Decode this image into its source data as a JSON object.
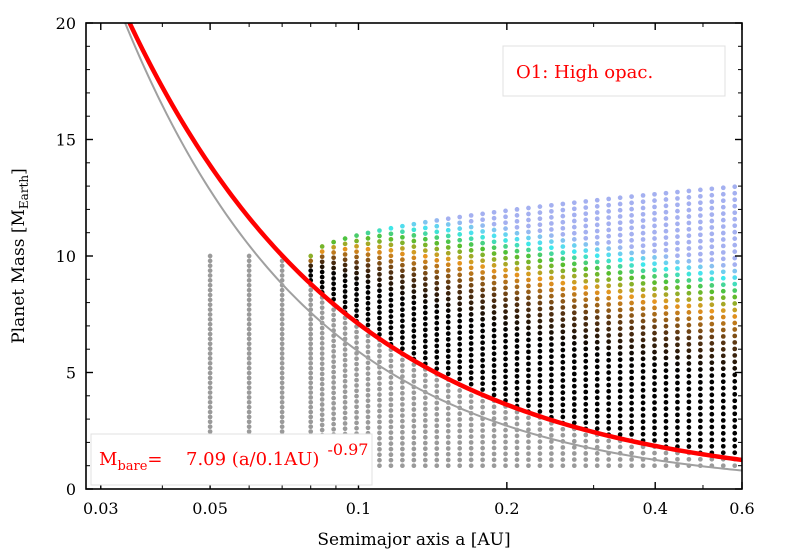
{
  "chart_data": {
    "type": "scatter",
    "xlabel": "Semimajor axis a [AU]",
    "ylabel": {
      "main": "Planet Mass [M",
      "sub": "Earth",
      "tail": "]"
    },
    "x_scale": "log",
    "xlim": [
      0.028,
      0.6
    ],
    "ylim": [
      0,
      20
    ],
    "xticks": [
      {
        "value": 0.03,
        "label": "0.03"
      },
      {
        "value": 0.05,
        "label": "0.05"
      },
      {
        "value": 0.1,
        "label": "0.1"
      },
      {
        "value": 0.2,
        "label": "0.2"
      },
      {
        "value": 0.4,
        "label": "0.4"
      },
      {
        "value": 0.6,
        "label": "0.6"
      }
    ],
    "yticks": [
      {
        "value": 0,
        "label": "0"
      },
      {
        "value": 5,
        "label": "5"
      },
      {
        "value": 10,
        "label": "10"
      },
      {
        "value": 15,
        "label": "15"
      },
      {
        "value": 20,
        "label": "20"
      }
    ],
    "legend_box": {
      "text": "O1: High opac.",
      "position": "top-right",
      "color": "#ff0000"
    },
    "formula_box": {
      "prefix": "M",
      "prefix_sub": "bare",
      "equals": "=",
      "body": "7.09 (a/0.1AU)",
      "exponent": "-0.97",
      "position": "bottom-left",
      "color": "#ff0000"
    },
    "curves": {
      "m_bare": {
        "coefficient": 7.09,
        "a_ref": 0.1,
        "exponent": -0.97,
        "color": "#ff0000"
      },
      "grey": {
        "coefficient": 5.9,
        "a_ref": 0.1,
        "exponent": -1.12,
        "color": "#a0a0a0"
      }
    },
    "colors": {
      "grey_points": "#9a9a9a",
      "black_points": "#000000",
      "brown_points": "#5a3512",
      "orange_points": "#e8961f",
      "green_points": "#4fbf2f",
      "cyan_points": "#3ee8ee",
      "periwinkle_points": "#a4b0f0",
      "axis": "#000000"
    },
    "grid": false,
    "point_grid": {
      "a_values_grey_only": [
        0.05,
        0.06,
        0.07
      ],
      "a_min_colored": 0.08,
      "a_max": 0.6,
      "a_ratio": 1.055,
      "mass_min": 1.0,
      "mass_max_near": 10.0,
      "mass_max_far": 13.0,
      "mass_rows": 44
    }
  }
}
